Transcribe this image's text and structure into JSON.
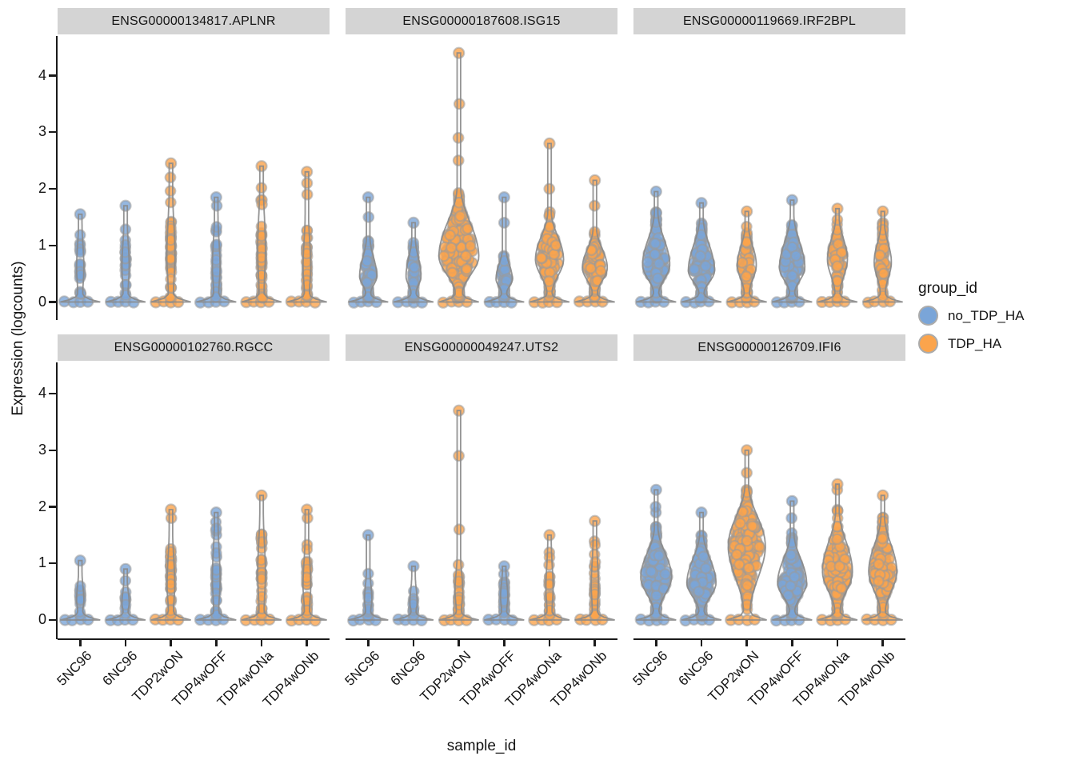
{
  "figure": {
    "y_axis_title": "Expression (logcounts)",
    "x_axis_title": "sample_id"
  },
  "legend": {
    "title": "group_id",
    "items": [
      {
        "label": "no_TDP_HA",
        "group": "no_TDP_HA"
      },
      {
        "label": "TDP_HA",
        "group": "TDP_HA"
      }
    ]
  },
  "chart_data": {
    "type": "violin",
    "xlabel": "sample_id",
    "ylabel": "Expression (logcounts)",
    "ylim": [
      0,
      4.4
    ],
    "yticks": [
      0,
      1,
      2,
      3,
      4
    ],
    "ytick_labels": [
      "0",
      "1",
      "2",
      "3",
      "4"
    ],
    "categories": [
      "5NC96",
      "6NC96",
      "TDP2wON",
      "TDP4wOFF",
      "TDP4wONa",
      "TDP4wONb"
    ],
    "category_groups": {
      "5NC96": "no_TDP_HA",
      "6NC96": "no_TDP_HA",
      "TDP2wON": "TDP_HA",
      "TDP4wOFF": "no_TDP_HA",
      "TDP4wONa": "TDP_HA",
      "TDP4wONb": "TDP_HA"
    },
    "colors": {
      "no_TDP_HA": "#7AA5D8",
      "TDP_HA": "#FBA44C",
      "point_stroke": "#9B9B9B",
      "violin_outline": "#8A8A8A",
      "violin_fill": "#FAFAFA",
      "strip_bg": "#D4D4D4",
      "axis": "#1A1A1A"
    },
    "facet_grid": {
      "rows": 2,
      "cols": 3
    },
    "legend_position": "right",
    "facets": [
      {
        "title": "ENSG00000134817.APLNR",
        "row": 0,
        "col": 0,
        "violins": [
          {
            "category": "5NC96",
            "group": "no_TDP_HA",
            "max": 1.55,
            "body": 1.4,
            "peak": 0.6,
            "width": 0.16,
            "n": 20,
            "outliers": []
          },
          {
            "category": "6NC96",
            "group": "no_TDP_HA",
            "max": 1.7,
            "body": 1.45,
            "peak": 0.6,
            "width": 0.16,
            "n": 18,
            "outliers": []
          },
          {
            "category": "TDP2wON",
            "group": "TDP_HA",
            "max": 2.45,
            "body": 2.0,
            "peak": 0.8,
            "width": 0.18,
            "n": 42,
            "outliers": [
              2.2
            ]
          },
          {
            "category": "TDP4wOFF",
            "group": "no_TDP_HA",
            "max": 1.85,
            "body": 1.55,
            "peak": 0.6,
            "width": 0.17,
            "n": 26,
            "outliers": [
              1.7
            ]
          },
          {
            "category": "TDP4wONa",
            "group": "TDP_HA",
            "max": 2.4,
            "body": 2.15,
            "peak": 0.9,
            "width": 0.17,
            "n": 38,
            "outliers": []
          },
          {
            "category": "TDP4wONb",
            "group": "TDP_HA",
            "max": 2.3,
            "body": 1.55,
            "peak": 0.6,
            "width": 0.17,
            "n": 28,
            "outliers": [
              1.9,
              2.1
            ]
          }
        ]
      },
      {
        "title": "ENSG00000187608.ISG15",
        "row": 0,
        "col": 1,
        "violins": [
          {
            "category": "5NC96",
            "group": "no_TDP_HA",
            "max": 1.85,
            "body": 1.15,
            "peak": 0.45,
            "width": 0.38,
            "n": 55,
            "outliers": [
              1.5
            ]
          },
          {
            "category": "6NC96",
            "group": "no_TDP_HA",
            "max": 1.4,
            "body": 1.15,
            "peak": 0.45,
            "width": 0.33,
            "n": 45,
            "outliers": []
          },
          {
            "category": "TDP2wON",
            "group": "TDP_HA",
            "max": 4.4,
            "body": 2.05,
            "peak": 0.8,
            "width": 0.88,
            "n": 250,
            "outliers": [
              2.5,
              2.9,
              3.5
            ]
          },
          {
            "category": "TDP4wOFF",
            "group": "no_TDP_HA",
            "max": 1.85,
            "body": 0.95,
            "peak": 0.4,
            "width": 0.36,
            "n": 50,
            "outliers": [
              1.4
            ]
          },
          {
            "category": "TDP4wONa",
            "group": "TDP_HA",
            "max": 2.8,
            "body": 1.6,
            "peak": 0.75,
            "width": 0.62,
            "n": 120,
            "outliers": [
              2.0
            ]
          },
          {
            "category": "TDP4wONb",
            "group": "TDP_HA",
            "max": 2.15,
            "body": 1.3,
            "peak": 0.6,
            "width": 0.55,
            "n": 95,
            "outliers": [
              1.7
            ]
          }
        ]
      },
      {
        "title": "ENSG00000119669.IRF2BPL",
        "row": 0,
        "col": 2,
        "violins": [
          {
            "category": "5NC96",
            "group": "no_TDP_HA",
            "max": 1.95,
            "body": 1.6,
            "peak": 0.65,
            "width": 0.6,
            "n": 130,
            "outliers": []
          },
          {
            "category": "6NC96",
            "group": "no_TDP_HA",
            "max": 1.75,
            "body": 1.5,
            "peak": 0.55,
            "width": 0.58,
            "n": 120,
            "outliers": []
          },
          {
            "category": "TDP2wON",
            "group": "TDP_HA",
            "max": 1.6,
            "body": 1.35,
            "peak": 0.65,
            "width": 0.42,
            "n": 70,
            "outliers": []
          },
          {
            "category": "TDP4wOFF",
            "group": "no_TDP_HA",
            "max": 1.8,
            "body": 1.55,
            "peak": 0.6,
            "width": 0.56,
            "n": 110,
            "outliers": []
          },
          {
            "category": "TDP4wONa",
            "group": "TDP_HA",
            "max": 1.65,
            "body": 1.5,
            "peak": 0.75,
            "width": 0.44,
            "n": 70,
            "outliers": []
          },
          {
            "category": "TDP4wONb",
            "group": "TDP_HA",
            "max": 1.6,
            "body": 1.4,
            "peak": 0.7,
            "width": 0.38,
            "n": 55,
            "outliers": []
          }
        ]
      },
      {
        "title": "ENSG00000102760.RGCC",
        "row": 1,
        "col": 0,
        "violins": [
          {
            "category": "5NC96",
            "group": "no_TDP_HA",
            "max": 1.05,
            "body": 0.85,
            "peak": 0.35,
            "width": 0.16,
            "n": 13,
            "outliers": []
          },
          {
            "category": "6NC96",
            "group": "no_TDP_HA",
            "max": 0.9,
            "body": 0.7,
            "peak": 0.3,
            "width": 0.16,
            "n": 9,
            "outliers": []
          },
          {
            "category": "TDP2wON",
            "group": "TDP_HA",
            "max": 1.95,
            "body": 1.6,
            "peak": 0.6,
            "width": 0.17,
            "n": 32,
            "outliers": [
              1.8
            ]
          },
          {
            "category": "TDP4wOFF",
            "group": "no_TDP_HA",
            "max": 1.9,
            "body": 1.8,
            "peak": 0.7,
            "width": 0.17,
            "n": 28,
            "outliers": []
          },
          {
            "category": "TDP4wONa",
            "group": "TDP_HA",
            "max": 2.2,
            "body": 1.95,
            "peak": 0.8,
            "width": 0.17,
            "n": 30,
            "outliers": []
          },
          {
            "category": "TDP4wONb",
            "group": "TDP_HA",
            "max": 1.95,
            "body": 1.5,
            "peak": 0.6,
            "width": 0.17,
            "n": 28,
            "outliers": [
              1.8
            ]
          }
        ]
      },
      {
        "title": "ENSG00000049247.UTS2",
        "row": 1,
        "col": 1,
        "violins": [
          {
            "category": "5NC96",
            "group": "no_TDP_HA",
            "max": 1.5,
            "body": 0.9,
            "peak": 0.35,
            "width": 0.16,
            "n": 11,
            "outliers": []
          },
          {
            "category": "6NC96",
            "group": "no_TDP_HA",
            "max": 0.95,
            "body": 0.8,
            "peak": 0.3,
            "width": 0.16,
            "n": 9,
            "outliers": []
          },
          {
            "category": "TDP2wON",
            "group": "TDP_HA",
            "max": 3.7,
            "body": 1.15,
            "peak": 0.5,
            "width": 0.17,
            "n": 26,
            "outliers": [
              1.6,
              2.9
            ]
          },
          {
            "category": "TDP4wOFF",
            "group": "no_TDP_HA",
            "max": 0.95,
            "body": 0.9,
            "peak": 0.4,
            "width": 0.16,
            "n": 22,
            "outliers": []
          },
          {
            "category": "TDP4wONa",
            "group": "TDP_HA",
            "max": 1.5,
            "body": 1.4,
            "peak": 0.55,
            "width": 0.16,
            "n": 20,
            "outliers": []
          },
          {
            "category": "TDP4wONb",
            "group": "TDP_HA",
            "max": 1.75,
            "body": 1.45,
            "peak": 0.6,
            "width": 0.16,
            "n": 24,
            "outliers": []
          }
        ]
      },
      {
        "title": "ENSG00000126709.IFI6",
        "row": 1,
        "col": 2,
        "violins": [
          {
            "category": "5NC96",
            "group": "no_TDP_HA",
            "max": 2.3,
            "body": 1.65,
            "peak": 0.75,
            "width": 0.68,
            "n": 155,
            "outliers": [
              1.9,
              2.0
            ]
          },
          {
            "category": "6NC96",
            "group": "no_TDP_HA",
            "max": 1.9,
            "body": 1.55,
            "peak": 0.65,
            "width": 0.64,
            "n": 145,
            "outliers": []
          },
          {
            "category": "TDP2wON",
            "group": "TDP_HA",
            "max": 3.0,
            "body": 2.4,
            "peak": 1.3,
            "width": 0.82,
            "n": 215,
            "outliers": [
              2.6
            ]
          },
          {
            "category": "TDP4wOFF",
            "group": "no_TDP_HA",
            "max": 2.1,
            "body": 1.55,
            "peak": 0.65,
            "width": 0.64,
            "n": 145,
            "outliers": [
              1.8
            ]
          },
          {
            "category": "TDP4wONa",
            "group": "TDP_HA",
            "max": 2.4,
            "body": 1.95,
            "peak": 0.85,
            "width": 0.66,
            "n": 155,
            "outliers": [
              2.3
            ]
          },
          {
            "category": "TDP4wONb",
            "group": "TDP_HA",
            "max": 2.2,
            "body": 1.85,
            "peak": 0.85,
            "width": 0.62,
            "n": 155,
            "outliers": []
          }
        ]
      }
    ]
  }
}
